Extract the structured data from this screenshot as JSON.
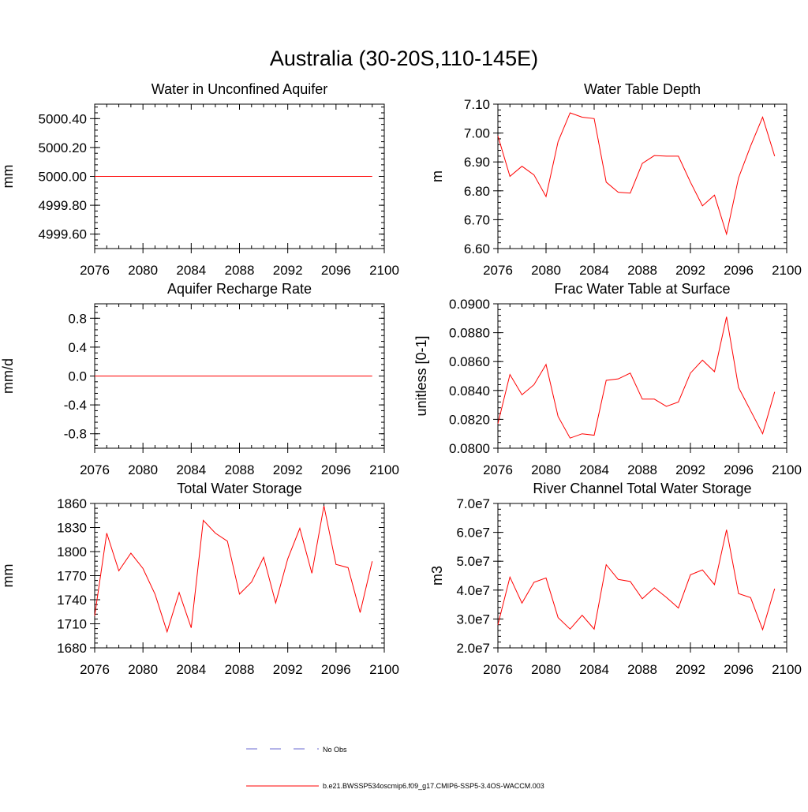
{
  "title": "Australia (30-20S,110-145E)",
  "legend": {
    "obs_label": "No Obs",
    "model_label": "b.e21.BWSSP534oscmip6.f09_g17.CMIP6-SSP5-3.4OS-WACCM.003",
    "model_color": "#ff0000",
    "obs_color": "#6a6ad0"
  },
  "chart_data": [
    {
      "type": "line",
      "title": "Water in Unconfined Aquifer",
      "ylabel": "mm",
      "xlim": [
        2076,
        2100
      ],
      "ylim": [
        4999.5,
        5000.5
      ],
      "xticks": [
        "2076",
        "2080",
        "2084",
        "2088",
        "2092",
        "2096",
        "2100"
      ],
      "yticks": [
        "4999.60",
        "4999.80",
        "5000.00",
        "5000.20",
        "5000.40"
      ],
      "x": [
        2076,
        2077,
        2078,
        2079,
        2080,
        2081,
        2082,
        2083,
        2084,
        2085,
        2086,
        2087,
        2088,
        2089,
        2090,
        2091,
        2092,
        2093,
        2094,
        2095,
        2096,
        2097,
        2098,
        2099
      ],
      "series": [
        {
          "name": "b.e21.BWSSP534oscmip6.f09_g17.CMIP6-SSP5-3.4OS-WACCM.003",
          "values": [
            5000,
            5000,
            5000,
            5000,
            5000,
            5000,
            5000,
            5000,
            5000,
            5000,
            5000,
            5000,
            5000,
            5000,
            5000,
            5000,
            5000,
            5000,
            5000,
            5000,
            5000,
            5000,
            5000,
            5000
          ]
        }
      ]
    },
    {
      "type": "line",
      "title": "Water Table Depth",
      "ylabel": "m",
      "xlim": [
        2076,
        2100
      ],
      "ylim": [
        6.6,
        7.1
      ],
      "xticks": [
        "2076",
        "2080",
        "2084",
        "2088",
        "2092",
        "2096",
        "2100"
      ],
      "yticks": [
        "6.60",
        "6.70",
        "6.80",
        "6.90",
        "7.00",
        "7.10"
      ],
      "x": [
        2076,
        2077,
        2078,
        2079,
        2080,
        2081,
        2082,
        2083,
        2084,
        2085,
        2086,
        2087,
        2088,
        2089,
        2090,
        2091,
        2092,
        2093,
        2094,
        2095,
        2096,
        2097,
        2098,
        2099
      ],
      "series": [
        {
          "name": "b.e21.BWSSP534oscmip6.f09_g17.CMIP6-SSP5-3.4OS-WACCM.003",
          "values": [
            6.99,
            6.85,
            6.885,
            6.855,
            6.78,
            6.97,
            7.07,
            7.055,
            7.05,
            6.83,
            6.795,
            6.792,
            6.895,
            6.922,
            6.92,
            6.92,
            6.83,
            6.748,
            6.785,
            6.65,
            6.845,
            6.955,
            7.055,
            6.92
          ]
        }
      ]
    },
    {
      "type": "line",
      "title": "Aquifer Recharge Rate",
      "ylabel": "mm/d",
      "xlim": [
        2076,
        2100
      ],
      "ylim": [
        -1.0,
        1.0
      ],
      "xticks": [
        "2076",
        "2080",
        "2084",
        "2088",
        "2092",
        "2096",
        "2100"
      ],
      "yticks": [
        "-0.8",
        "-0.4",
        "0.0",
        "0.4",
        "0.8"
      ],
      "x": [
        2076,
        2077,
        2078,
        2079,
        2080,
        2081,
        2082,
        2083,
        2084,
        2085,
        2086,
        2087,
        2088,
        2089,
        2090,
        2091,
        2092,
        2093,
        2094,
        2095,
        2096,
        2097,
        2098,
        2099
      ],
      "series": [
        {
          "name": "b.e21.BWSSP534oscmip6.f09_g17.CMIP6-SSP5-3.4OS-WACCM.003",
          "values": [
            0,
            0,
            0,
            0,
            0,
            0,
            0,
            0,
            0,
            0,
            0,
            0,
            0,
            0,
            0,
            0,
            0,
            0,
            0,
            0,
            0,
            0,
            0,
            0
          ]
        }
      ]
    },
    {
      "type": "line",
      "title": "Frac Water Table at Surface",
      "ylabel": "unitless [0-1]",
      "xlim": [
        2076,
        2100
      ],
      "ylim": [
        0.08,
        0.09
      ],
      "xticks": [
        "2076",
        "2080",
        "2084",
        "2088",
        "2092",
        "2096",
        "2100"
      ],
      "yticks": [
        "0.0800",
        "0.0820",
        "0.0840",
        "0.0860",
        "0.0880",
        "0.0900"
      ],
      "x": [
        2076,
        2077,
        2078,
        2079,
        2080,
        2081,
        2082,
        2083,
        2084,
        2085,
        2086,
        2087,
        2088,
        2089,
        2090,
        2091,
        2092,
        2093,
        2094,
        2095,
        2096,
        2097,
        2098,
        2099
      ],
      "series": [
        {
          "name": "b.e21.BWSSP534oscmip6.f09_g17.CMIP6-SSP5-3.4OS-WACCM.003",
          "values": [
            0.0817,
            0.0851,
            0.0837,
            0.0844,
            0.0858,
            0.0822,
            0.0807,
            0.081,
            0.0809,
            0.0847,
            0.0848,
            0.0852,
            0.0834,
            0.0834,
            0.0829,
            0.0832,
            0.0852,
            0.0861,
            0.0853,
            0.0891,
            0.0842,
            0.0826,
            0.081,
            0.0839
          ]
        }
      ]
    },
    {
      "type": "line",
      "title": "Total Water Storage",
      "ylabel": "mm",
      "xlim": [
        2076,
        2100
      ],
      "ylim": [
        1680,
        1860
      ],
      "xticks": [
        "2076",
        "2080",
        "2084",
        "2088",
        "2092",
        "2096",
        "2100"
      ],
      "yticks": [
        "1680",
        "1710",
        "1740",
        "1770",
        "1800",
        "1830",
        "1860"
      ],
      "x": [
        2076,
        2077,
        2078,
        2079,
        2080,
        2081,
        2082,
        2083,
        2084,
        2085,
        2086,
        2087,
        2088,
        2089,
        2090,
        2091,
        2092,
        2093,
        2094,
        2095,
        2096,
        2097,
        2098,
        2099
      ],
      "series": [
        {
          "name": "b.e21.BWSSP534oscmip6.f09_g17.CMIP6-SSP5-3.4OS-WACCM.003",
          "values": [
            1720,
            1823,
            1776,
            1798,
            1779,
            1747,
            1700,
            1749,
            1705,
            1839,
            1823,
            1813,
            1747,
            1762,
            1793,
            1736,
            1791,
            1829,
            1773,
            1857,
            1784,
            1780,
            1724,
            1788
          ]
        }
      ]
    },
    {
      "type": "line",
      "title": "River Channel Total Water Storage",
      "ylabel": "m3",
      "xlim": [
        2076,
        2100
      ],
      "ylim": [
        20000000,
        70000000
      ],
      "xticks": [
        "2076",
        "2080",
        "2084",
        "2088",
        "2092",
        "2096",
        "2100"
      ],
      "yticks": [
        "2.0e7",
        "3.0e7",
        "4.0e7",
        "5.0e7",
        "6.0e7",
        "7.0e7"
      ],
      "x": [
        2076,
        2077,
        2078,
        2079,
        2080,
        2081,
        2082,
        2083,
        2084,
        2085,
        2086,
        2087,
        2088,
        2089,
        2090,
        2091,
        2092,
        2093,
        2094,
        2095,
        2096,
        2097,
        2098,
        2099
      ],
      "series": [
        {
          "name": "b.e21.BWSSP534oscmip6.f09_g17.CMIP6-SSP5-3.4OS-WACCM.003",
          "values": [
            28000000,
            44500000,
            35500000,
            42700000,
            44200000,
            30500000,
            26500000,
            31300000,
            26500000,
            48800000,
            43700000,
            43000000,
            37000000,
            40800000,
            37500000,
            33800000,
            45300000,
            47000000,
            41900000,
            60900000,
            38800000,
            37400000,
            26300000,
            40500000
          ]
        }
      ]
    }
  ]
}
